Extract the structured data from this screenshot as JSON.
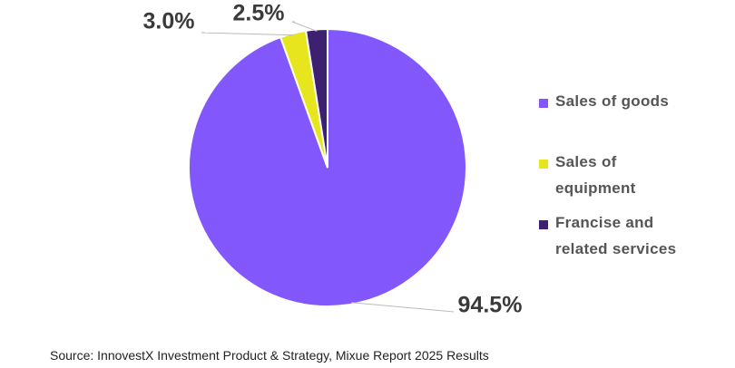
{
  "chart_data": {
    "type": "pie",
    "categories": [
      "Sales of goods",
      "Sales of equipment",
      "Francise and related services"
    ],
    "values": [
      94.5,
      3,
      2.5
    ],
    "value_labels": [
      "94.5%",
      "3.0%",
      "2.5%"
    ],
    "colors": [
      "#8257fb",
      "#e6e51e",
      "#3d2070"
    ],
    "legend": "right",
    "source": "Source: InnovestX Investment Product & Strategy, Mixue Report 2025 Results"
  }
}
